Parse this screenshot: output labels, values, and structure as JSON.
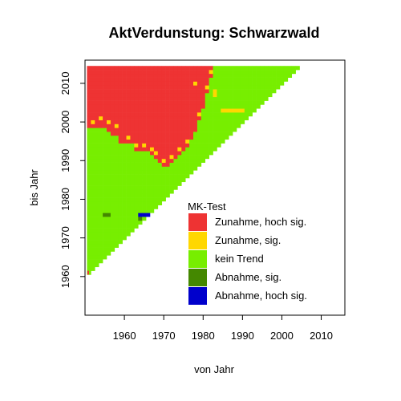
{
  "chart_data": {
    "type": "heatmap",
    "title": "AktVerdunstung: Schwarzwald",
    "xlabel": "von Jahr",
    "ylabel": "bis Jahr",
    "xlim": [
      1950,
      2016
    ],
    "ylim": [
      1950,
      2016
    ],
    "x_ticks": [
      "1960",
      "1970",
      "1980",
      "1990",
      "2000",
      "2010"
    ],
    "y_ticks": [
      "1960",
      "1970",
      "1980",
      "1990",
      "2000",
      "2010"
    ],
    "data_range": {
      "from_start": 1951,
      "from_end": 2005,
      "to_end": 2014,
      "min_span": 10
    },
    "legend": {
      "title": "MK-Test",
      "position": "bottom-right",
      "items": [
        {
          "key": "zh",
          "label": "Zunahme, hoch sig.",
          "color": "#ee3333"
        },
        {
          "key": "z",
          "label": "Zunahme, sig.",
          "color": "#ffd700"
        },
        {
          "key": "k",
          "label": "kein Trend",
          "color": "#77ee00"
        },
        {
          "key": "a",
          "label": "Abnahme, sig.",
          "color": "#448800"
        },
        {
          "key": "ah",
          "label": "Abnahme, hoch sig.",
          "color": "#0000cc"
        }
      ]
    },
    "significance_regions": {
      "hoch_sig_zunahme_to_year_threshold_by_from_year": [
        [
          1951,
          1999
        ],
        [
          1952,
          1999
        ],
        [
          1953,
          1999
        ],
        [
          1954,
          1999
        ],
        [
          1955,
          1999
        ],
        [
          1956,
          1998
        ],
        [
          1957,
          1997
        ],
        [
          1958,
          1997
        ],
        [
          1959,
          1995
        ],
        [
          1960,
          1995
        ],
        [
          1961,
          1995
        ],
        [
          1962,
          1995
        ],
        [
          1963,
          1993
        ],
        [
          1964,
          1993
        ],
        [
          1965,
          1993
        ],
        [
          1966,
          1993
        ],
        [
          1967,
          1992
        ],
        [
          1968,
          1991
        ],
        [
          1969,
          1990
        ],
        [
          1970,
          1989
        ],
        [
          1971,
          1989
        ],
        [
          1972,
          1990
        ],
        [
          1973,
          1991
        ],
        [
          1974,
          1992
        ],
        [
          1975,
          1993
        ],
        [
          1976,
          1994
        ],
        [
          1977,
          1996
        ],
        [
          1978,
          1998
        ],
        [
          1979,
          2001
        ],
        [
          1980,
          2004
        ],
        [
          1981,
          2008
        ],
        [
          1982,
          2012
        ]
      ],
      "zunahme_sig_cells": [
        [
          1952,
          2000
        ],
        [
          1954,
          2001
        ],
        [
          1956,
          2000
        ],
        [
          1958,
          1999
        ],
        [
          1961,
          1996
        ],
        [
          1963,
          1994
        ],
        [
          1965,
          1994
        ],
        [
          1967,
          1993
        ],
        [
          1968,
          1992
        ],
        [
          1970,
          1990
        ],
        [
          1972,
          1991
        ],
        [
          1974,
          1993
        ],
        [
          1976,
          1995
        ],
        [
          1979,
          2002
        ],
        [
          1981,
          2009
        ],
        [
          1978,
          2010
        ],
        [
          1982,
          2013
        ],
        [
          1983,
          2007
        ],
        [
          1983,
          2008
        ],
        [
          1985,
          2003
        ],
        [
          1986,
          2003
        ],
        [
          1987,
          2003
        ],
        [
          1988,
          2003
        ],
        [
          1989,
          2003
        ],
        [
          1990,
          2003
        ]
      ],
      "abnahme_sig_cells": [
        [
          1955,
          1976
        ],
        [
          1956,
          1976
        ],
        [
          1964,
          1975
        ],
        [
          1967,
          1976
        ]
      ],
      "abnahme_hoch_sig_cells": [
        [
          1964,
          1976
        ],
        [
          1965,
          1976
        ],
        [
          1966,
          1976
        ]
      ]
    }
  }
}
